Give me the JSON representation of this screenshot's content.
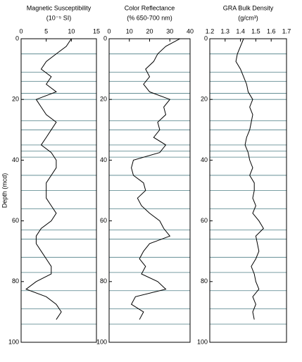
{
  "chart_data": [
    {
      "type": "line",
      "title": "Magnetic Susceptibility",
      "subtitle": "(10⁻⁵ SI)",
      "ylabel": "Depth (mcd)",
      "color": "#000000",
      "hline_color": "#4f7f86",
      "xlim": [
        0,
        15
      ],
      "xticks": [
        0,
        5,
        10,
        15
      ],
      "ylim": [
        0,
        100
      ],
      "yticks": [
        0,
        20,
        40,
        60,
        80,
        100
      ],
      "hlines": [
        5,
        11,
        14,
        18,
        20,
        27,
        30,
        35,
        37,
        39,
        45,
        50,
        56,
        63,
        66,
        72,
        77,
        83,
        89,
        94
      ],
      "depth": [
        0,
        2.5,
        5,
        7.5,
        10,
        12.5,
        15,
        17.5,
        20,
        22.5,
        25,
        27.5,
        30,
        32.5,
        35,
        37.5,
        40,
        42.5,
        45,
        47.5,
        50,
        52.5,
        55,
        57.5,
        60,
        62.5,
        65,
        67.5,
        70,
        72.5,
        75,
        77.5,
        80,
        82.5,
        85,
        87.5,
        90,
        92.5
      ],
      "values": [
        10,
        9,
        7,
        5,
        4,
        6,
        5,
        7,
        3,
        4,
        5,
        7,
        6,
        5,
        4,
        6,
        7,
        7,
        6,
        5,
        5,
        5,
        6,
        7,
        6,
        4,
        3,
        3,
        4,
        5,
        6,
        6,
        3,
        1,
        5,
        7,
        8,
        7
      ]
    },
    {
      "type": "line",
      "title": "Color Reflectance",
      "subtitle": "(% 650-700 nm)",
      "color": "#000000",
      "hline_color": "#4f7f86",
      "xlim": [
        0,
        40
      ],
      "xticks": [
        0,
        10,
        20,
        30,
        40
      ],
      "ylim": [
        0,
        100
      ],
      "yticks": [
        0,
        20,
        40,
        60,
        80,
        100
      ],
      "hlines": [
        5,
        11,
        14,
        18,
        20,
        27,
        30,
        35,
        37,
        39,
        45,
        50,
        56,
        63,
        66,
        72,
        77,
        83,
        89,
        94
      ],
      "depth": [
        0,
        2.5,
        5,
        7.5,
        10,
        12.5,
        15,
        17.5,
        20,
        22.5,
        25,
        27.5,
        30,
        32.5,
        35,
        37.5,
        40,
        42.5,
        45,
        47.5,
        50,
        52.5,
        55,
        57.5,
        60,
        62.5,
        65,
        67.5,
        70,
        72.5,
        75,
        77.5,
        80,
        82.5,
        85,
        87.5,
        90,
        92.5
      ],
      "values": [
        35,
        28,
        24,
        22,
        18,
        20,
        17,
        20,
        30,
        27,
        28,
        24,
        25,
        22,
        28,
        25,
        12,
        11,
        12,
        17,
        18,
        14,
        16,
        20,
        25,
        27,
        30,
        20,
        17,
        15,
        18,
        16,
        24,
        28,
        13,
        11,
        17,
        15
      ]
    },
    {
      "type": "line",
      "title": "GRA Bulk Density",
      "subtitle": "(g/cm³)",
      "color": "#000000",
      "hline_color": "#4f7f86",
      "xlim": [
        1.2,
        1.7
      ],
      "xticks": [
        1.2,
        1.3,
        1.4,
        1.5,
        1.6,
        1.7
      ],
      "ylim": [
        0,
        100
      ],
      "yticks": [
        0,
        20,
        40,
        60,
        80,
        100
      ],
      "hlines": [
        5,
        11,
        14,
        18,
        20,
        27,
        30,
        35,
        37,
        39,
        45,
        50,
        56,
        63,
        66,
        72,
        77,
        83,
        89,
        94
      ],
      "depth": [
        0,
        2.5,
        5,
        7.5,
        10,
        12.5,
        15,
        17.5,
        20,
        22.5,
        25,
        27.5,
        30,
        32.5,
        35,
        37.5,
        40,
        42.5,
        45,
        47.5,
        50,
        52.5,
        55,
        57.5,
        60,
        62.5,
        65,
        67.5,
        70,
        72.5,
        75,
        77.5,
        80,
        82.5,
        85,
        87.5,
        90,
        92.5
      ],
      "values": [
        1.42,
        1.4,
        1.38,
        1.37,
        1.4,
        1.42,
        1.44,
        1.45,
        1.48,
        1.46,
        1.48,
        1.47,
        1.46,
        1.44,
        1.43,
        1.45,
        1.46,
        1.48,
        1.46,
        1.49,
        1.49,
        1.48,
        1.5,
        1.48,
        1.52,
        1.55,
        1.5,
        1.51,
        1.52,
        1.5,
        1.47,
        1.49,
        1.5,
        1.52,
        1.48,
        1.5,
        1.48,
        1.49
      ]
    }
  ]
}
